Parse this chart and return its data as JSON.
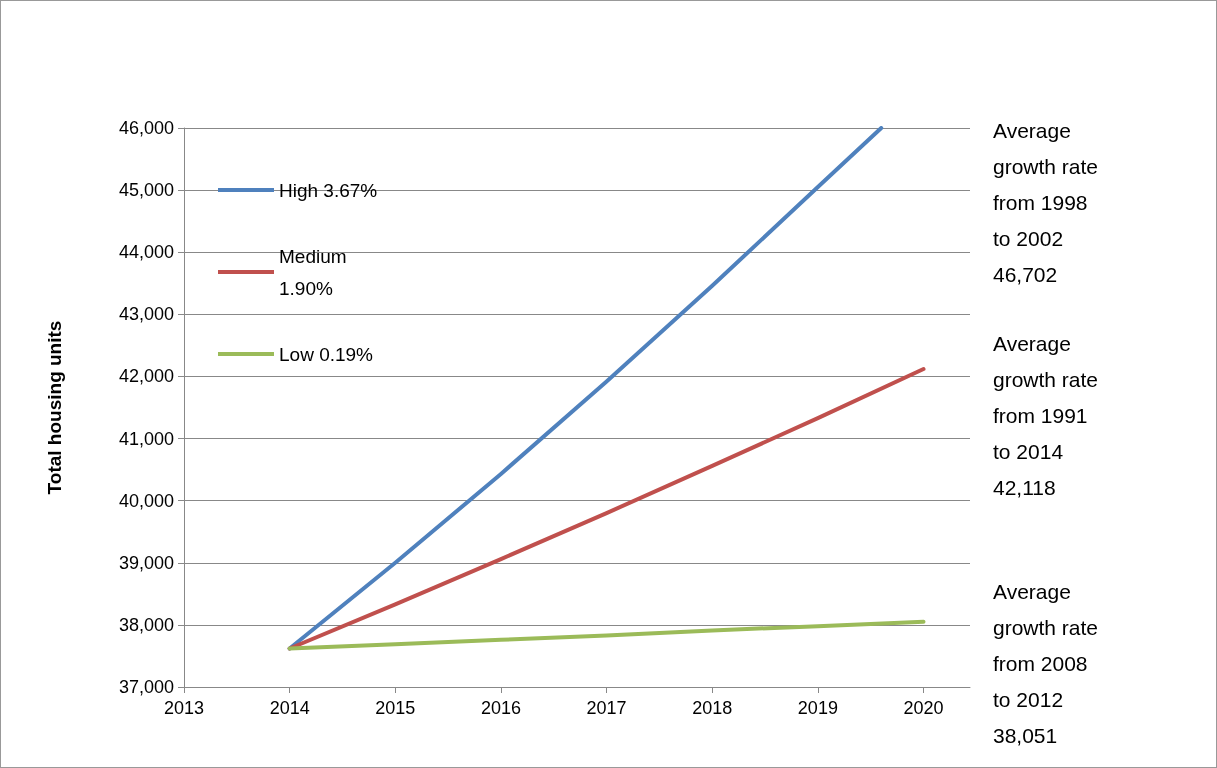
{
  "chart_data": {
    "type": "line",
    "ylabel": "Total housing units",
    "xlim": [
      2013,
      2020.44
    ],
    "xticks": [
      2013,
      2014,
      2015,
      2016,
      2017,
      2018,
      2019,
      2020
    ],
    "ylim": [
      37000,
      46000
    ],
    "yticks": [
      {
        "value": 37000,
        "label": "37,000"
      },
      {
        "value": 38000,
        "label": "38,000"
      },
      {
        "value": 39000,
        "label": "39,000"
      },
      {
        "value": 40000,
        "label": "40,000"
      },
      {
        "value": 41000,
        "label": "41,000"
      },
      {
        "value": 42000,
        "label": "42,000"
      },
      {
        "value": 43000,
        "label": "43,000"
      },
      {
        "value": 44000,
        "label": "44,000"
      },
      {
        "value": 45000,
        "label": "45,000"
      },
      {
        "value": 46000,
        "label": "46,000"
      }
    ],
    "grid": "y",
    "legend": "top left",
    "marker": "none",
    "line_style": "solid",
    "series": [
      {
        "name": "High 3.67%",
        "color": "#4f81bd",
        "x": [
          2014,
          2015,
          2016,
          2017,
          2018,
          2019,
          2019.6
        ],
        "values": [
          37620,
          39000,
          40430,
          41920,
          43460,
          45050,
          46000
        ]
      },
      {
        "name": "Medium 1.90%",
        "color": "#c0504d",
        "x": [
          2014,
          2015,
          2016,
          2017,
          2018,
          2019,
          2020
        ],
        "values": [
          37620,
          38330,
          39060,
          39800,
          40560,
          41330,
          42120
        ]
      },
      {
        "name": "Low 0.19%",
        "color": "#9bbb59",
        "x": [
          2014,
          2015,
          2016,
          2017,
          2018,
          2019,
          2020
        ],
        "values": [
          37620,
          37690,
          37760,
          37830,
          37910,
          37980,
          38050
        ]
      }
    ],
    "annotations": [
      "Average growth rate from 1998 to 2002 46,702",
      "Average growth rate from 1991 to 2014 42,118",
      "Average growth rate from 2008 to 2012 38,051"
    ]
  }
}
